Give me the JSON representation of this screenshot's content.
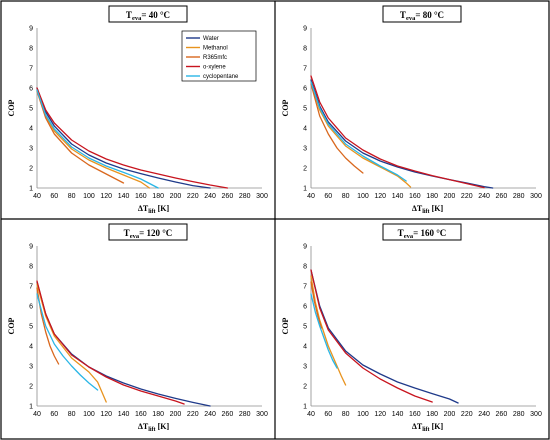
{
  "colors": {
    "Water": "#1f3a8a",
    "Methanol": "#e8931e",
    "R365mfc": "#d9681e",
    "o-xylene": "#c8141e",
    "cyclopentane": "#29b6e6"
  },
  "legend": [
    "Water",
    "Methanol",
    "R365mfc",
    "o-xylene",
    "cyclopentane"
  ],
  "chart_data": [
    {
      "type": "line",
      "title": {
        "main": "T",
        "sub": "eva",
        "rest": "= 40 °C"
      },
      "ylabel": "COP",
      "xlabel": {
        "main": "ΔT",
        "sub": "lift",
        "rest": " [K]"
      },
      "xlim": [
        40,
        300
      ],
      "ylim": [
        1,
        9
      ],
      "xticks": [
        40,
        60,
        80,
        100,
        120,
        140,
        160,
        180,
        200,
        220,
        240,
        260,
        280,
        300
      ],
      "yticks": [
        1,
        2,
        3,
        4,
        5,
        6,
        7,
        8,
        9
      ],
      "grid": false,
      "legend_position": "top-center",
      "series": [
        {
          "name": "Water",
          "x": [
            40,
            50,
            60,
            80,
            100,
            120,
            140,
            160,
            180,
            200,
            220,
            240
          ],
          "y": [
            6.0,
            4.8,
            4.1,
            3.2,
            2.65,
            2.25,
            1.95,
            1.72,
            1.5,
            1.3,
            1.12,
            1.0
          ]
        },
        {
          "name": "Methanol",
          "x": [
            40,
            50,
            60,
            80,
            100,
            120,
            140,
            160,
            170
          ],
          "y": [
            5.9,
            4.6,
            3.85,
            2.95,
            2.4,
            2.0,
            1.65,
            1.3,
            1.0
          ]
        },
        {
          "name": "R365mfc",
          "x": [
            40,
            50,
            60,
            80,
            100,
            120,
            140
          ],
          "y": [
            5.85,
            4.5,
            3.7,
            2.75,
            2.15,
            1.7,
            1.25
          ]
        },
        {
          "name": "o-xylene",
          "x": [
            40,
            50,
            60,
            80,
            100,
            120,
            140,
            160,
            180,
            200,
            220,
            240,
            260
          ],
          "y": [
            6.0,
            4.9,
            4.25,
            3.4,
            2.85,
            2.45,
            2.15,
            1.9,
            1.7,
            1.5,
            1.32,
            1.15,
            1.0
          ]
        },
        {
          "name": "cyclopentane",
          "x": [
            40,
            50,
            60,
            80,
            100,
            120,
            140,
            160,
            180
          ],
          "y": [
            5.9,
            4.65,
            3.95,
            3.05,
            2.5,
            2.1,
            1.78,
            1.45,
            1.0
          ]
        }
      ]
    },
    {
      "type": "line",
      "title": {
        "main": "T",
        "sub": "eva",
        "rest": "= 80 °C"
      },
      "ylabel": "COP",
      "xlabel": {
        "main": "ΔT",
        "sub": "lift",
        "rest": " [K]"
      },
      "xlim": [
        40,
        300
      ],
      "ylim": [
        1,
        9
      ],
      "xticks": [
        40,
        60,
        80,
        100,
        120,
        140,
        160,
        180,
        200,
        220,
        240,
        260,
        280,
        300
      ],
      "yticks": [
        1,
        2,
        3,
        4,
        5,
        6,
        7,
        8,
        9
      ],
      "grid": false,
      "series": [
        {
          "name": "Water",
          "x": [
            40,
            50,
            60,
            80,
            100,
            120,
            140,
            160,
            180,
            200,
            220,
            240,
            250
          ],
          "y": [
            6.4,
            5.1,
            4.3,
            3.35,
            2.75,
            2.35,
            2.05,
            1.8,
            1.6,
            1.42,
            1.25,
            1.07,
            1.0
          ]
        },
        {
          "name": "Methanol",
          "x": [
            40,
            50,
            60,
            80,
            100,
            120,
            140,
            150,
            155
          ],
          "y": [
            6.3,
            4.9,
            4.1,
            3.1,
            2.5,
            2.05,
            1.6,
            1.25,
            1.05
          ]
        },
        {
          "name": "R365mfc",
          "x": [
            40,
            50,
            60,
            70,
            80,
            90,
            100
          ],
          "y": [
            6.2,
            4.6,
            3.7,
            3.0,
            2.5,
            2.1,
            1.75
          ]
        },
        {
          "name": "o-xylene",
          "x": [
            40,
            50,
            60,
            80,
            100,
            120,
            140,
            160,
            180,
            200,
            220,
            240
          ],
          "y": [
            6.6,
            5.3,
            4.5,
            3.5,
            2.9,
            2.45,
            2.1,
            1.85,
            1.62,
            1.42,
            1.22,
            1.02
          ]
        },
        {
          "name": "cyclopentane",
          "x": [
            40,
            50,
            60,
            80,
            100,
            120,
            140,
            150
          ],
          "y": [
            6.3,
            5.0,
            4.2,
            3.2,
            2.6,
            2.1,
            1.65,
            1.35
          ]
        }
      ]
    },
    {
      "type": "line",
      "title": {
        "main": "T",
        "sub": "eva",
        "rest": "= 120 °C"
      },
      "ylabel": "COP",
      "xlabel": {
        "main": "ΔT",
        "sub": "lift",
        "rest": " [K]"
      },
      "xlim": [
        40,
        300
      ],
      "ylim": [
        1,
        9
      ],
      "xticks": [
        40,
        60,
        80,
        100,
        120,
        140,
        160,
        180,
        200,
        220,
        240,
        260,
        280,
        300
      ],
      "yticks": [
        1,
        2,
        3,
        4,
        5,
        6,
        7,
        8,
        9
      ],
      "grid": false,
      "series": [
        {
          "name": "Water",
          "x": [
            40,
            50,
            60,
            80,
            100,
            120,
            140,
            160,
            180,
            200,
            220,
            240
          ],
          "y": [
            7.2,
            5.6,
            4.6,
            3.6,
            2.95,
            2.5,
            2.15,
            1.85,
            1.6,
            1.38,
            1.18,
            1.0
          ]
        },
        {
          "name": "Methanol",
          "x": [
            40,
            50,
            60,
            80,
            100,
            110,
            115,
            120
          ],
          "y": [
            7.1,
            5.5,
            4.5,
            3.4,
            2.7,
            2.2,
            1.7,
            1.2
          ]
        },
        {
          "name": "R365mfc",
          "x": [
            40,
            45,
            50,
            55,
            60,
            65
          ],
          "y": [
            6.9,
            5.6,
            4.7,
            4.0,
            3.5,
            3.1
          ]
        },
        {
          "name": "o-xylene",
          "x": [
            40,
            50,
            60,
            80,
            100,
            120,
            140,
            160,
            180,
            200,
            210
          ],
          "y": [
            7.25,
            5.6,
            4.6,
            3.55,
            2.95,
            2.45,
            2.05,
            1.75,
            1.5,
            1.25,
            1.1
          ]
        },
        {
          "name": "cyclopentane",
          "x": [
            40,
            50,
            60,
            70,
            80,
            90,
            100,
            110
          ],
          "y": [
            6.6,
            5.0,
            4.1,
            3.5,
            3.0,
            2.55,
            2.15,
            1.8
          ]
        }
      ]
    },
    {
      "type": "line",
      "title": {
        "main": "T",
        "sub": "eva",
        "rest": "= 160 °C"
      },
      "ylabel": "COP",
      "xlabel": {
        "main": "ΔT",
        "sub": "lift",
        "rest": " [K]"
      },
      "xlim": [
        40,
        300
      ],
      "ylim": [
        1,
        9
      ],
      "xticks": [
        40,
        60,
        80,
        100,
        120,
        140,
        160,
        180,
        200,
        220,
        240,
        260,
        280,
        300
      ],
      "yticks": [
        1,
        2,
        3,
        4,
        5,
        6,
        7,
        8,
        9
      ],
      "grid": false,
      "series": [
        {
          "name": "Water",
          "x": [
            40,
            50,
            60,
            80,
            100,
            120,
            140,
            160,
            180,
            200,
            210
          ],
          "y": [
            7.8,
            6.0,
            4.9,
            3.75,
            3.05,
            2.6,
            2.2,
            1.9,
            1.62,
            1.35,
            1.15
          ]
        },
        {
          "name": "Methanol",
          "x": [
            40,
            45,
            50,
            60,
            70,
            75,
            80
          ],
          "y": [
            7.5,
            6.2,
            5.3,
            4.0,
            3.0,
            2.5,
            2.05
          ]
        },
        {
          "name": "R365mfc",
          "x": [
            40,
            44,
            48,
            52
          ],
          "y": [
            7.2,
            6.2,
            5.5,
            4.9
          ]
        },
        {
          "name": "o-xylene",
          "x": [
            40,
            50,
            60,
            80,
            100,
            120,
            140,
            160,
            180
          ],
          "y": [
            7.8,
            5.9,
            4.8,
            3.65,
            2.9,
            2.35,
            1.9,
            1.5,
            1.2
          ]
        },
        {
          "name": "cyclopentane",
          "x": [
            40,
            45,
            50,
            55,
            60,
            65,
            70
          ],
          "y": [
            6.6,
            5.7,
            5.0,
            4.4,
            3.8,
            3.3,
            2.9
          ]
        }
      ]
    }
  ]
}
